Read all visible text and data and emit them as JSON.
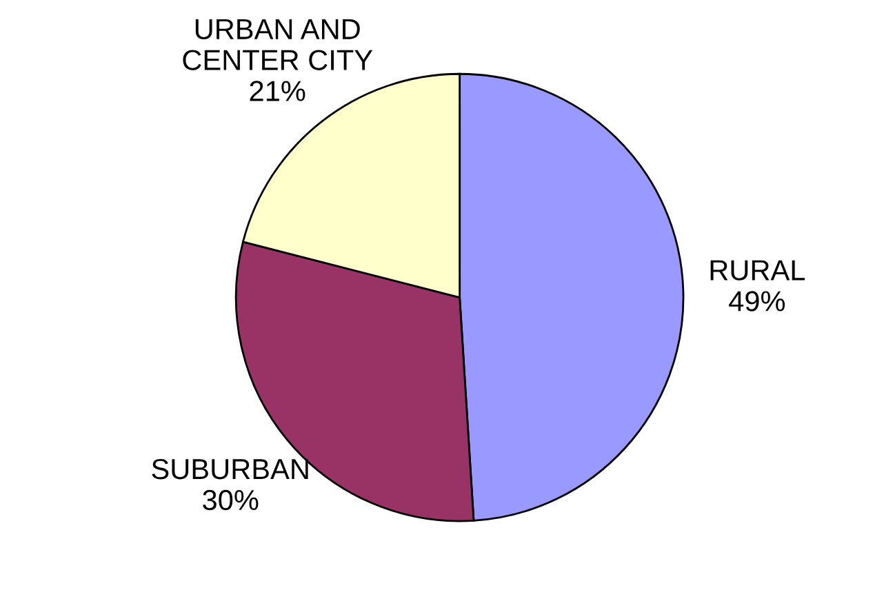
{
  "chart_data": {
    "type": "pie",
    "categories": [
      "RURAL",
      "SUBURBAN",
      "URBAN AND\nCENTER CITY"
    ],
    "values": [
      49,
      30,
      21
    ],
    "value_labels": [
      "49%",
      "30%",
      "21%"
    ],
    "colors": [
      "#9999ff",
      "#993366",
      "#ffffcc"
    ]
  }
}
